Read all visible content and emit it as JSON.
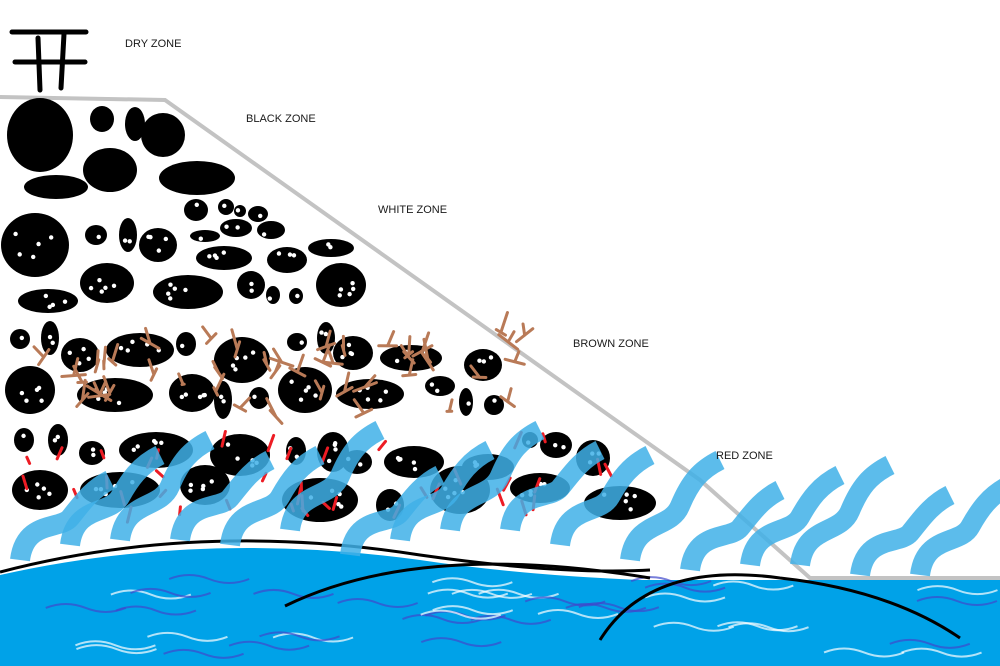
{
  "labels": {
    "dry": "DRY ZONE",
    "black": "BLACK ZONE",
    "white": "WHITE ZONE",
    "brown": "BROWN ZONE",
    "red": "RED ZONE"
  },
  "colors": {
    "slope": "#c3c3c3",
    "rock": "#000000",
    "roots": "#b97a57",
    "red": "#ed1c24",
    "water": "#00a2e8",
    "waves": "#3fb0e8",
    "scribble": "#3f48cc"
  },
  "icons": {
    "tower": "tower-icon"
  }
}
